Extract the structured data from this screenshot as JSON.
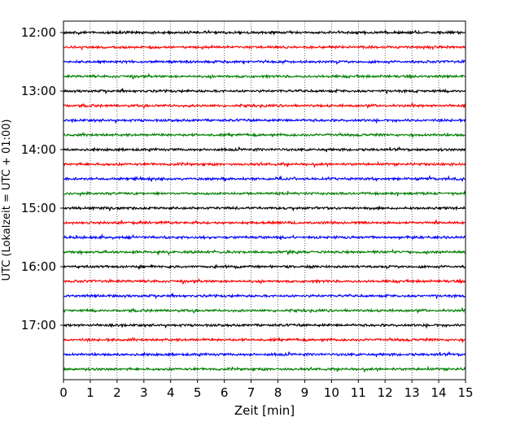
{
  "chart_data": {
    "type": "line",
    "title": "",
    "xlabel": "Zeit  [min]",
    "ylabel": "UTC (Lokalzeit = UTC + 01:00)",
    "xlim": [
      0,
      15
    ],
    "x_ticks": [
      "0",
      "1",
      "2",
      "3",
      "4",
      "5",
      "6",
      "7",
      "8",
      "9",
      "10",
      "11",
      "12",
      "13",
      "14",
      "15"
    ],
    "y_tick_labels": [
      "12:00",
      "13:00",
      "14:00",
      "15:00",
      "16:00",
      "17:00"
    ],
    "grid": "vertical dotted at each minute",
    "line_colors": [
      "#000000",
      "#ff0000",
      "#0000ff",
      "#008000"
    ],
    "traces": [
      {
        "start": "12:00",
        "color": "#000000"
      },
      {
        "start": "12:15",
        "color": "#ff0000"
      },
      {
        "start": "12:30",
        "color": "#0000ff"
      },
      {
        "start": "12:45",
        "color": "#008000"
      },
      {
        "start": "13:00",
        "color": "#000000"
      },
      {
        "start": "13:15",
        "color": "#ff0000"
      },
      {
        "start": "13:30",
        "color": "#0000ff"
      },
      {
        "start": "13:45",
        "color": "#008000"
      },
      {
        "start": "14:00",
        "color": "#000000"
      },
      {
        "start": "14:15",
        "color": "#ff0000"
      },
      {
        "start": "14:30",
        "color": "#0000ff"
      },
      {
        "start": "14:45",
        "color": "#008000"
      },
      {
        "start": "15:00",
        "color": "#000000"
      },
      {
        "start": "15:15",
        "color": "#ff0000"
      },
      {
        "start": "15:30",
        "color": "#0000ff"
      },
      {
        "start": "15:45",
        "color": "#008000"
      },
      {
        "start": "16:00",
        "color": "#000000"
      },
      {
        "start": "16:15",
        "color": "#ff0000"
      },
      {
        "start": "16:30",
        "color": "#0000ff"
      },
      {
        "start": "16:45",
        "color": "#008000"
      },
      {
        "start": "17:00",
        "color": "#000000"
      },
      {
        "start": "17:15",
        "color": "#ff0000"
      },
      {
        "start": "17:30",
        "color": "#0000ff"
      },
      {
        "start": "17:45",
        "color": "#008000"
      }
    ]
  }
}
